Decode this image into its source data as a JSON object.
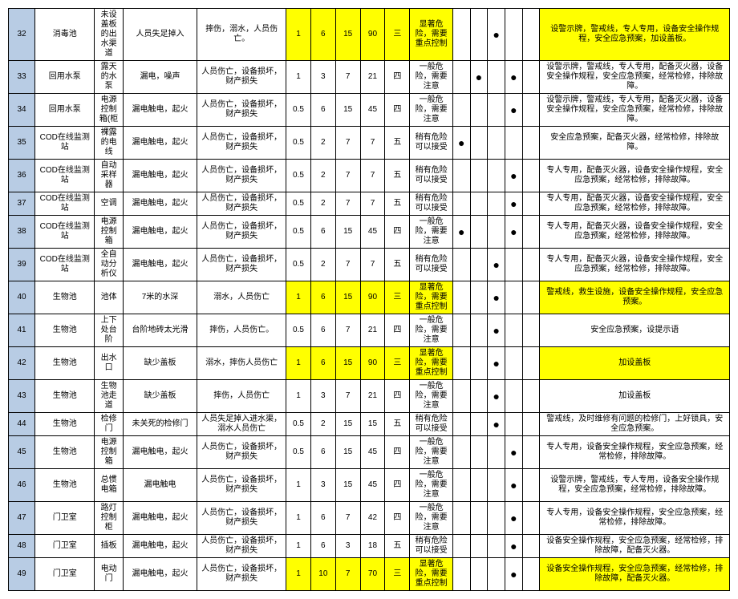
{
  "colors": {
    "id_bg": "#b8cce4",
    "highlight": "#ffff00",
    "border": "#000000"
  },
  "rows": [
    {
      "id": "32",
      "loc": "消毒池",
      "sub": "未设盖板的出水渠道",
      "haz": "人员失足掉入",
      "cons": "摔伤，溺水，人员伤亡。",
      "n1": "1",
      "n2": "6",
      "n3": "15",
      "n4": "90",
      "lvl": "三",
      "risk": "显著危险，需要重点控制",
      "dots": [
        0,
        0,
        1,
        0,
        0
      ],
      "meas": "设警示牌，警戒线，专人专用，设备安全操作规程，安全应急预案，加设盖板。",
      "hl": true
    },
    {
      "id": "33",
      "loc": "回用水泵",
      "sub": "露天的水泵",
      "haz": "漏电，噪声",
      "cons": "人员伤亡，设备损坏，财产损失",
      "n1": "1",
      "n2": "3",
      "n3": "7",
      "n4": "21",
      "lvl": "四",
      "risk": "一般危险，需要注意",
      "dots": [
        0,
        1,
        0,
        1,
        0
      ],
      "meas": "设警示牌，警戒线，专人专用，配备灭火器，设备安全操作规程，安全应急预案，经常检修，排除故障。",
      "hl": false
    },
    {
      "id": "34",
      "loc": "回用水泵",
      "sub": "电源控制箱(柜",
      "haz": "漏电触电，起火",
      "cons": "人员伤亡，设备损坏，财产损失",
      "n1": "0.5",
      "n2": "6",
      "n3": "15",
      "n4": "45",
      "lvl": "四",
      "risk": "一般危险，需要注意",
      "dots": [
        0,
        0,
        0,
        1,
        0
      ],
      "meas": "设警示牌，警戒线，专人专用，配备灭火器，设备安全操作规程，安全应急预案，经常检修，排除故障。",
      "hl": false
    },
    {
      "id": "35",
      "loc": "COD在线监测站",
      "sub": "裸露的电线",
      "haz": "漏电触电，起火",
      "cons": "人员伤亡，设备损坏，财产损失",
      "n1": "0.5",
      "n2": "2",
      "n3": "7",
      "n4": "7",
      "lvl": "五",
      "risk": "稍有危险可以接受",
      "dots": [
        1,
        0,
        0,
        0,
        0
      ],
      "meas": "安全应急预案，配备灭火器，经常检修，排除故障。",
      "hl": false
    },
    {
      "id": "36",
      "loc": "COD在线监测站",
      "sub": "自动采样器",
      "haz": "漏电触电，起火",
      "cons": "人员伤亡，设备损坏，财产损失",
      "n1": "0.5",
      "n2": "2",
      "n3": "7",
      "n4": "7",
      "lvl": "五",
      "risk": "稍有危险可以接受",
      "dots": [
        0,
        0,
        0,
        1,
        0
      ],
      "meas": "专人专用，配备灭火器，设备安全操作规程，安全应急预案，经常检修，排除故障。",
      "hl": false
    },
    {
      "id": "37",
      "loc": "COD在线监测站",
      "sub": "空调",
      "haz": "漏电触电，起火",
      "cons": "人员伤亡，设备损坏，财产损失",
      "n1": "0.5",
      "n2": "2",
      "n3": "7",
      "n4": "7",
      "lvl": "五",
      "risk": "稍有危险可以接受",
      "dots": [
        0,
        0,
        0,
        1,
        0
      ],
      "meas": "专人专用，配备灭火器，设备安全操作规程，安全应急预案，经常检修，排除故障。",
      "hl": false
    },
    {
      "id": "38",
      "loc": "COD在线监测站",
      "sub": "电源控制箱",
      "haz": "漏电触电，起火",
      "cons": "人员伤亡，设备损坏，财产损失",
      "n1": "0.5",
      "n2": "6",
      "n3": "15",
      "n4": "45",
      "lvl": "四",
      "risk": "一般危险，需要注意",
      "dots": [
        1,
        0,
        0,
        1,
        0
      ],
      "meas": "专人专用，配备灭火器，设备安全操作规程，安全应急预案，经常检修，排除故障。",
      "hl": false
    },
    {
      "id": "39",
      "loc": "COD在线监测站",
      "sub": "全自动分析仪",
      "haz": "漏电触电，起火",
      "cons": "人员伤亡，设备损坏，财产损失",
      "n1": "0.5",
      "n2": "2",
      "n3": "7",
      "n4": "7",
      "lvl": "五",
      "risk": "稍有危险可以接受",
      "dots": [
        0,
        0,
        1,
        0,
        0
      ],
      "meas": "专人专用，配备灭火器，设备安全操作规程，安全应急预案，经常检修，排除故障。",
      "hl": false
    },
    {
      "id": "40",
      "loc": "生物池",
      "sub": "池体",
      "haz": "7米的水深",
      "cons": "溺水，人员伤亡",
      "n1": "1",
      "n2": "6",
      "n3": "15",
      "n4": "90",
      "lvl": "三",
      "risk": "显著危险，需要重点控制",
      "dots": [
        0,
        0,
        1,
        0,
        0
      ],
      "meas": "警戒线，救生设施，设备安全操作规程，安全应急预案。",
      "hl": true
    },
    {
      "id": "41",
      "loc": "生物池",
      "sub": "上下处台阶",
      "haz": "台阶地砖太光滑",
      "cons": "摔伤，人员伤亡。",
      "n1": "0.5",
      "n2": "6",
      "n3": "7",
      "n4": "21",
      "lvl": "四",
      "risk": "一般危险，需要注意",
      "dots": [
        0,
        0,
        1,
        0,
        0
      ],
      "meas": "安全应急预案，设提示语",
      "hl": false
    },
    {
      "id": "42",
      "loc": "生物池",
      "sub": "出水口",
      "haz": "缺少盖板",
      "cons": "溺水，摔伤人员伤亡",
      "n1": "1",
      "n2": "6",
      "n3": "15",
      "n4": "90",
      "lvl": "三",
      "risk": "显著危险，需要重点控制",
      "dots": [
        0,
        0,
        1,
        0,
        0
      ],
      "meas": "加设盖板",
      "hl": true
    },
    {
      "id": "43",
      "loc": "生物池",
      "sub": "生物池走道",
      "haz": "缺少盖板",
      "cons": "摔伤，人员伤亡",
      "n1": "1",
      "n2": "3",
      "n3": "7",
      "n4": "21",
      "lvl": "四",
      "risk": "一般危险，需要注意",
      "dots": [
        0,
        0,
        1,
        0,
        0
      ],
      "meas": "加设盖板",
      "hl": false
    },
    {
      "id": "44",
      "loc": "生物池",
      "sub": "检修门",
      "haz": "未关死的检修门",
      "cons": "人员失足掉入进水渠，溺水人员伤亡",
      "n1": "0.5",
      "n2": "2",
      "n3": "15",
      "n4": "15",
      "lvl": "五",
      "risk": "稍有危险可以接受",
      "dots": [
        0,
        0,
        1,
        0,
        0
      ],
      "meas": "警戒线，及时维修有问题的检修门，上好锁具，安全应急预案。",
      "hl": false
    },
    {
      "id": "45",
      "loc": "生物池",
      "sub": "电源控制箱",
      "haz": "漏电触电，起火",
      "cons": "人员伤亡，设备损坏，财产损失",
      "n1": "0.5",
      "n2": "6",
      "n3": "15",
      "n4": "45",
      "lvl": "四",
      "risk": "一般危险，需要注意",
      "dots": [
        0,
        0,
        0,
        1,
        0
      ],
      "meas": "专人专用，设备安全操作规程，安全应急预案，经常检修，排除故障。",
      "hl": false
    },
    {
      "id": "46",
      "loc": "生物池",
      "sub": "总惯电箱",
      "haz": "漏电触电",
      "cons": "人员伤亡，设备损坏，财产损失",
      "n1": "1",
      "n2": "3",
      "n3": "15",
      "n4": "45",
      "lvl": "四",
      "risk": "一般危险，需要注意",
      "dots": [
        0,
        0,
        0,
        1,
        0
      ],
      "meas": "设警示牌，警戒线，专人专用，设备安全操作规程，安全应急预案，经常检修，排除故障。",
      "hl": false
    },
    {
      "id": "47",
      "loc": "门卫室",
      "sub": "路灯控制柜",
      "haz": "漏电触电，起火",
      "cons": "人员伤亡，设备损坏，财产损失",
      "n1": "1",
      "n2": "6",
      "n3": "7",
      "n4": "42",
      "lvl": "四",
      "risk": "一般危险，需要注意",
      "dots": [
        0,
        0,
        0,
        1,
        0
      ],
      "meas": "专人专用，设备安全操作规程，安全应急预案，经常检修，排除故障。",
      "hl": false
    },
    {
      "id": "48",
      "loc": "门卫室",
      "sub": "插板",
      "haz": "漏电触电，起火",
      "cons": "人员伤亡，设备损坏，财产损失",
      "n1": "1",
      "n2": "6",
      "n3": "3",
      "n4": "18",
      "lvl": "五",
      "risk": "稍有危险可以接受",
      "dots": [
        0,
        0,
        0,
        1,
        0
      ],
      "meas": "设备安全操作规程，安全应急预案，经常检修，排除故障，配备灭火器。",
      "hl": false
    },
    {
      "id": "49",
      "loc": "门卫室",
      "sub": "电动门",
      "haz": "漏电触电，起火",
      "cons": "人员伤亡，设备损坏，财产损失",
      "n1": "1",
      "n2": "10",
      "n3": "7",
      "n4": "70",
      "lvl": "三",
      "risk": "显著危险，需要重点控制",
      "dots": [
        0,
        0,
        0,
        1,
        0
      ],
      "meas": "设备安全操作规程，安全应急预案，经常检修，排除故障，配备灭火器。",
      "hl": true
    }
  ]
}
